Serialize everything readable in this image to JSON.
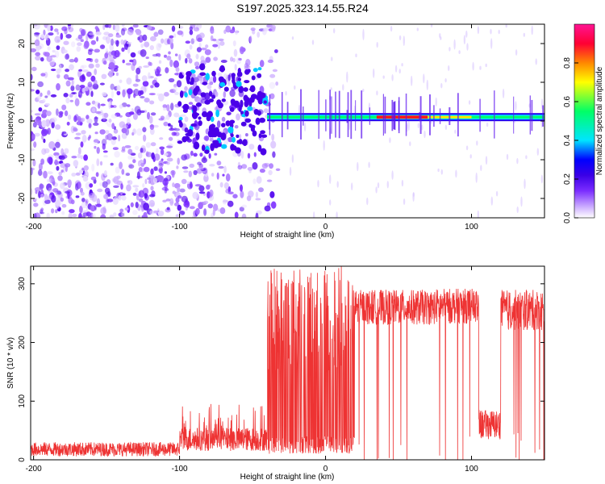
{
  "title": "S197.2025.323.14.55.R24",
  "chart_data": [
    {
      "type": "heatmap",
      "xlabel": "Height of straight line (km)",
      "ylabel": "Frequency (Hz)",
      "xlim": [
        -202,
        150
      ],
      "ylim": [
        -25,
        25
      ],
      "xticks": [
        -200,
        -100,
        0,
        100
      ],
      "yticks": [
        -20,
        -10,
        0,
        10,
        20
      ],
      "colorbar": {
        "label": "Normalized spectral amplitude",
        "range": [
          0,
          1
        ],
        "ticks": [
          0.0,
          0.2,
          0.4,
          0.6,
          0.8
        ],
        "colors": [
          "#ffffff",
          "#c9a8ff",
          "#7a2cff",
          "#3a00e6",
          "#0000ff",
          "#00e5ff",
          "#00ff66",
          "#ffff00",
          "#ff8800",
          "#ff0033",
          "#ff1493"
        ]
      },
      "regions": [
        {
          "x_range": [
            -202,
            -40
          ],
          "description_level": 0.2
        },
        {
          "x_range": [
            -40,
            150
          ],
          "line_frequency_hz": 1
        }
      ]
    },
    {
      "type": "line",
      "xlabel": "Height of straight line (km)",
      "ylabel": "SNR (10 * v/v)",
      "xlim": [
        -202,
        150
      ],
      "ylim": [
        0,
        330
      ],
      "xticks": [
        -200,
        -100,
        0,
        100
      ],
      "yticks": [
        0,
        100,
        200,
        300
      ],
      "color": "#ee3333",
      "segments": [
        {
          "x": [
            -202,
            -100
          ],
          "level": 18
        },
        {
          "x": [
            -100,
            -40
          ],
          "level": 35
        },
        {
          "x": [
            -40,
            20
          ],
          "level": 120
        },
        {
          "x": [
            20,
            75
          ],
          "level": 260
        },
        {
          "x": [
            75,
            105
          ],
          "level": 262
        },
        {
          "x": [
            105,
            120
          ],
          "level": 60
        },
        {
          "x": [
            120,
            150
          ],
          "level": 255
        }
      ]
    }
  ]
}
